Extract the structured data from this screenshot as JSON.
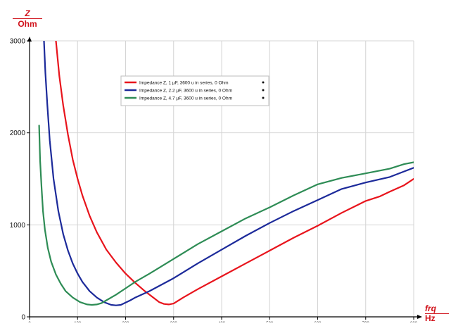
{
  "chart_data": {
    "type": "line",
    "ylabel": {
      "symbol": "Z",
      "unit": "Ohm"
    },
    "xlabel": {
      "symbol": "frq",
      "unit": "Hz"
    },
    "xlim": [
      0,
      800
    ],
    "ylim": [
      0,
      3000
    ],
    "yticks": [
      "0",
      "1000",
      "2000",
      "3000"
    ],
    "xticks": [
      "0",
      "100",
      "200",
      "300",
      "400",
      "500",
      "600",
      "700",
      "800"
    ],
    "grid": true,
    "legend_position": "top-left",
    "series": [
      {
        "name": "Impedance Z, 1 µF, 3600 u in series, 0 Ohm",
        "color": "#e8141c",
        "x": [
          55,
          62,
          70,
          80,
          90,
          100,
          110,
          125,
          140,
          160,
          180,
          200,
          220,
          240,
          260,
          270,
          280,
          290,
          300,
          320,
          350,
          400,
          450,
          500,
          550,
          600,
          650,
          700,
          730,
          750,
          780,
          800
        ],
        "y": [
          3000,
          2620,
          2300,
          1980,
          1710,
          1500,
          1320,
          1100,
          920,
          730,
          590,
          470,
          370,
          280,
          200,
          160,
          140,
          135,
          145,
          210,
          300,
          440,
          580,
          720,
          860,
          990,
          1130,
          1260,
          1310,
          1360,
          1430,
          1500
        ]
      },
      {
        "name": "Impedance Z, 2.2 µF, 3600 u in series, 0 Ohm",
        "color": "#1c2a9a",
        "x": [
          30,
          33,
          37,
          42,
          50,
          60,
          70,
          80,
          90,
          100,
          110,
          125,
          140,
          155,
          170,
          180,
          190,
          200,
          210,
          220,
          250,
          300,
          350,
          400,
          450,
          500,
          550,
          600,
          650,
          700,
          750,
          780,
          800
        ],
        "y": [
          3000,
          2650,
          2300,
          1920,
          1500,
          1150,
          900,
          720,
          580,
          470,
          380,
          280,
          210,
          160,
          130,
          125,
          130,
          155,
          180,
          210,
          280,
          420,
          580,
          730,
          880,
          1020,
          1150,
          1270,
          1390,
          1460,
          1520,
          1580,
          1620
        ]
      },
      {
        "name": "Impedance Z, 4.7 µF, 3600 u in series, 0 Ohm",
        "color": "#2e8c55",
        "x": [
          20,
          22,
          25,
          28,
          32,
          38,
          45,
          55,
          65,
          75,
          90,
          105,
          120,
          130,
          140,
          150,
          160,
          180,
          200,
          220,
          250,
          300,
          350,
          400,
          450,
          500,
          550,
          600,
          650,
          700,
          750,
          780,
          800
        ],
        "y": [
          2080,
          1700,
          1400,
          1150,
          950,
          750,
          600,
          460,
          360,
          280,
          210,
          160,
          135,
          130,
          135,
          150,
          180,
          240,
          310,
          380,
          470,
          630,
          790,
          930,
          1070,
          1190,
          1320,
          1440,
          1510,
          1560,
          1610,
          1660,
          1680
        ]
      }
    ]
  }
}
